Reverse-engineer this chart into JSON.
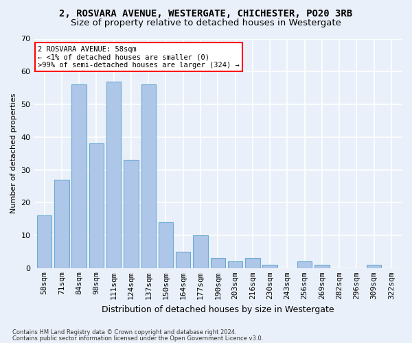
{
  "title1": "2, ROSVARA AVENUE, WESTERGATE, CHICHESTER, PO20 3RB",
  "title2": "Size of property relative to detached houses in Westergate",
  "xlabel": "Distribution of detached houses by size in Westergate",
  "ylabel": "Number of detached properties",
  "categories": [
    "58sqm",
    "71sqm",
    "84sqm",
    "98sqm",
    "111sqm",
    "124sqm",
    "137sqm",
    "150sqm",
    "164sqm",
    "177sqm",
    "190sqm",
    "203sqm",
    "216sqm",
    "230sqm",
    "243sqm",
    "256sqm",
    "269sqm",
    "282sqm",
    "296sqm",
    "309sqm",
    "322sqm"
  ],
  "values": [
    16,
    27,
    56,
    38,
    57,
    33,
    56,
    14,
    5,
    10,
    3,
    2,
    3,
    1,
    0,
    2,
    1,
    0,
    0,
    1,
    0
  ],
  "bar_color": "#aec6e8",
  "bar_edge_color": "#6aaad4",
  "ylim": [
    0,
    70
  ],
  "annotation_text": "2 ROSVARA AVENUE: 58sqm\n← <1% of detached houses are smaller (0)\n>99% of semi-detached houses are larger (324) →",
  "annotation_box_color": "white",
  "annotation_box_edge_color": "red",
  "footnote1": "Contains HM Land Registry data © Crown copyright and database right 2024.",
  "footnote2": "Contains public sector information licensed under the Open Government Licence v3.0.",
  "background_color": "#eaf0f9",
  "grid_color": "#ffffff",
  "title_fontsize": 10,
  "subtitle_fontsize": 9.5,
  "bar_width": 0.85
}
